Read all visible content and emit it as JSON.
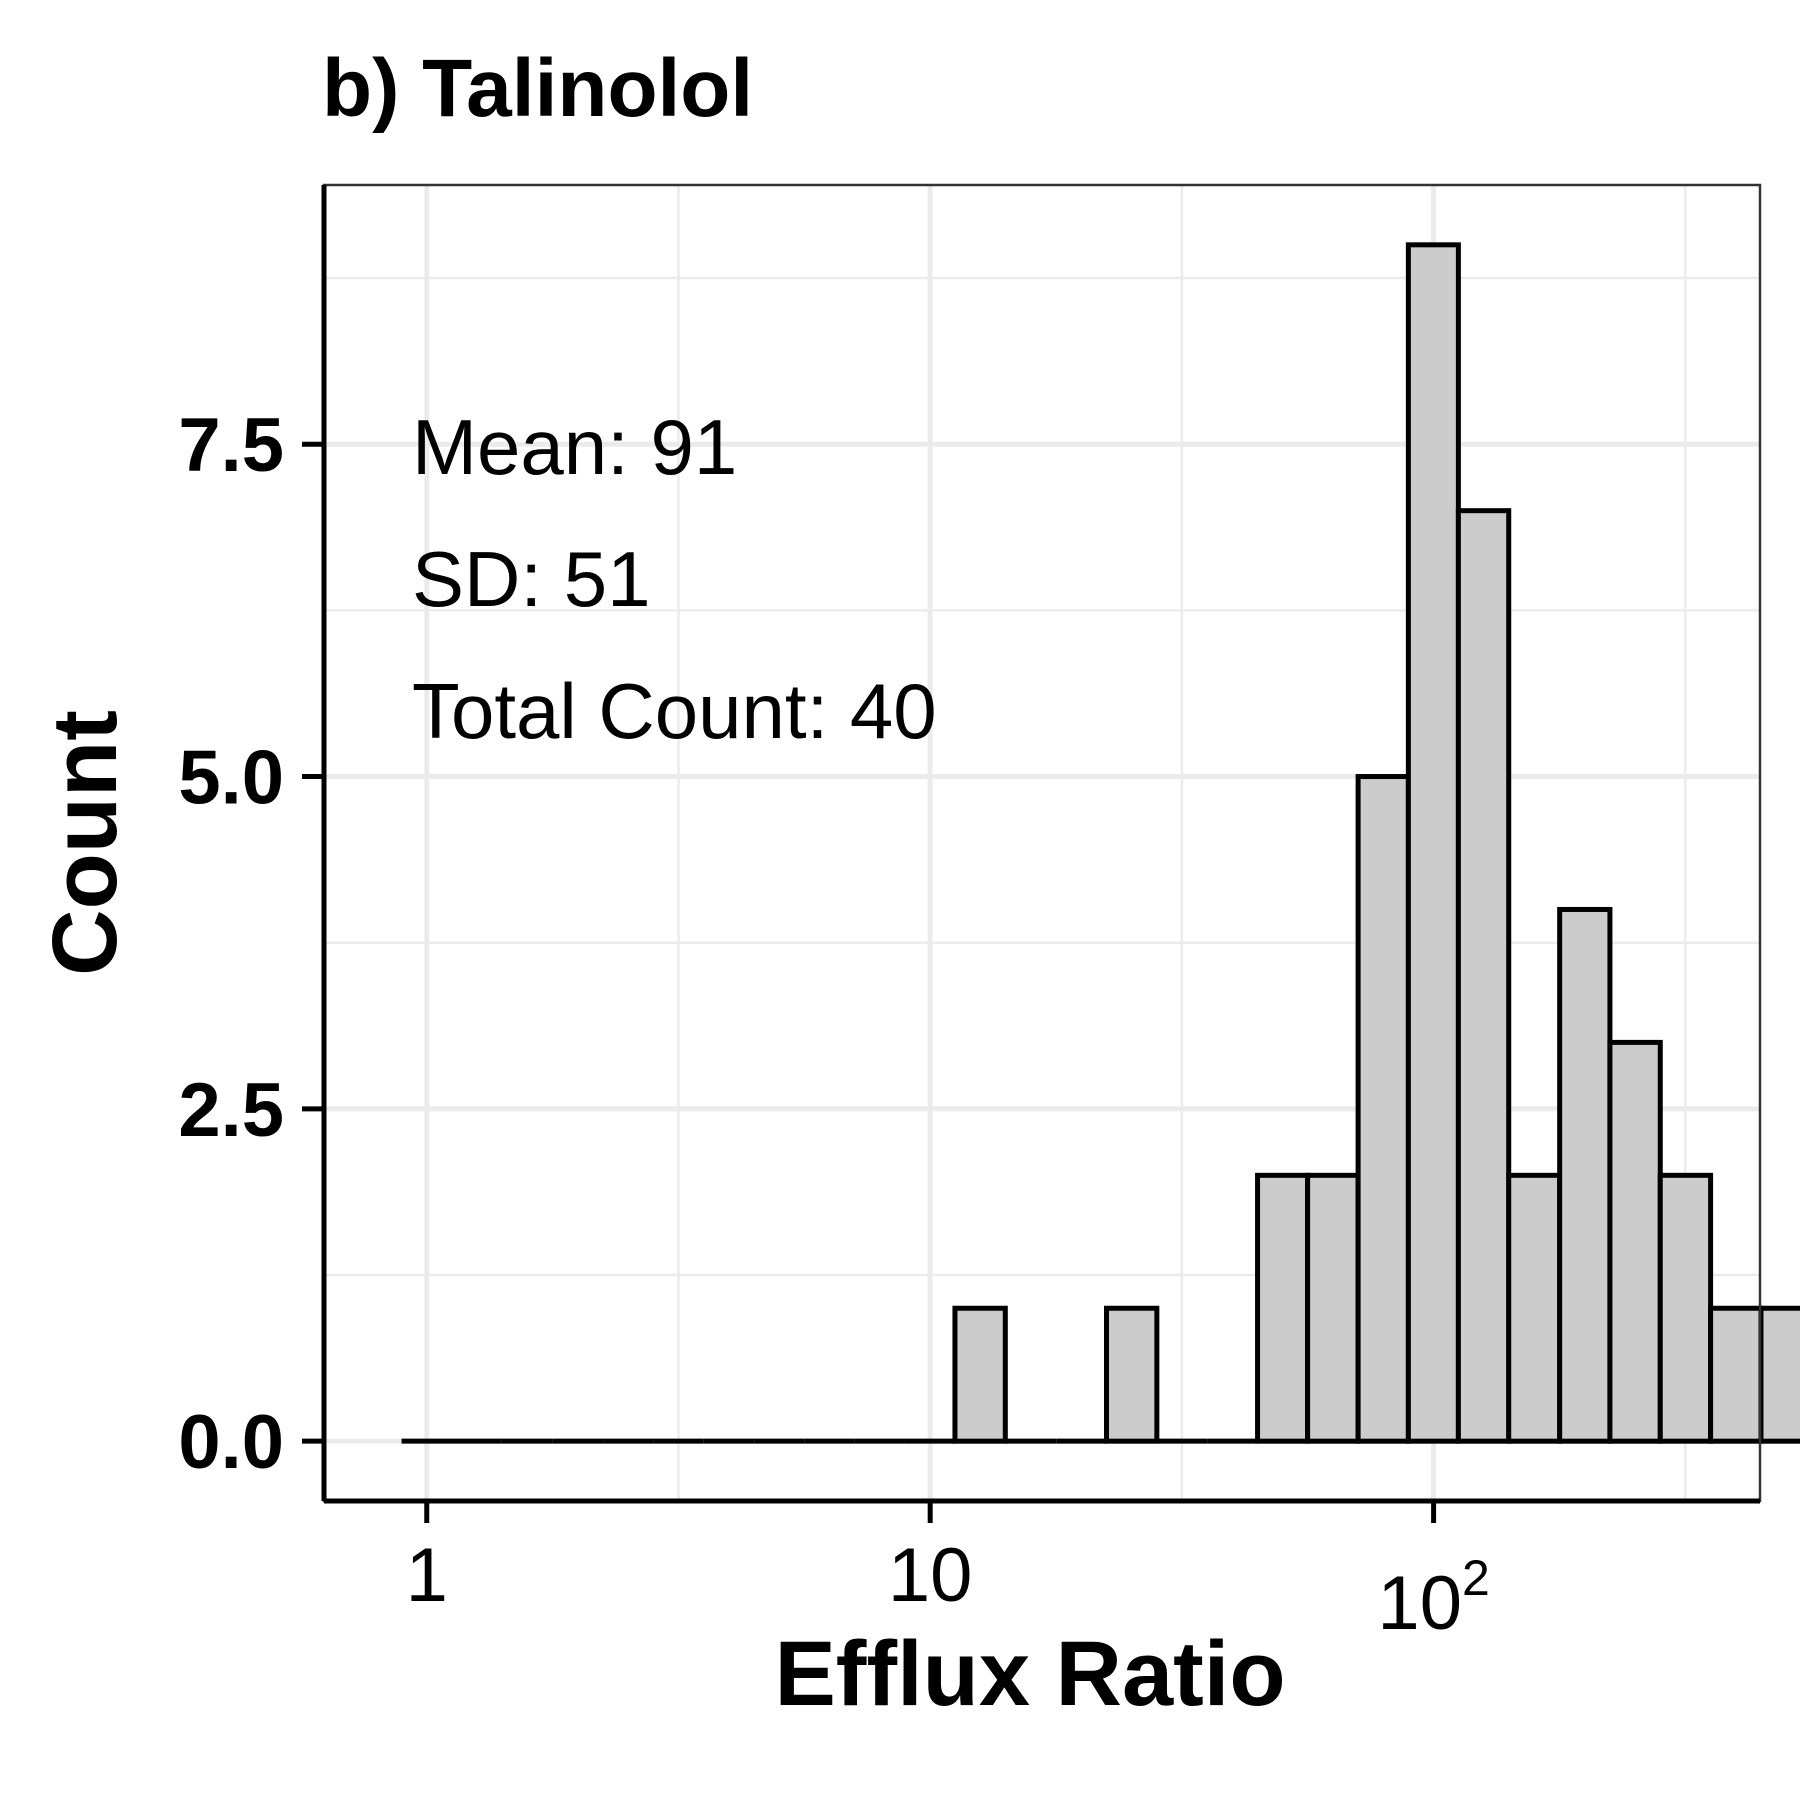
{
  "chart_data": {
    "type": "bar",
    "title": "b) Talinolol",
    "xlabel": "Efflux Ratio",
    "ylabel": "Count",
    "x_scale": "log10",
    "xlim": [
      0.625,
      445
    ],
    "ylim": [
      -0.45,
      9.45
    ],
    "x_ticks": [
      {
        "value": 1,
        "label": "1",
        "sup": ""
      },
      {
        "value": 10,
        "label": "10",
        "sup": ""
      },
      {
        "value": 100,
        "label": "10",
        "sup": "2"
      }
    ],
    "y_ticks": [
      {
        "value": 0,
        "label": "0.0"
      },
      {
        "value": 2.5,
        "label": "2.5"
      },
      {
        "value": 5,
        "label": "5.0"
      },
      {
        "value": 7.5,
        "label": "7.5"
      }
    ],
    "grid": true,
    "bar_fill": "#cccccc",
    "bar_edge": "#000000",
    "grid_color": "#ebebeb",
    "bins": [
      {
        "x0": 0.891,
        "x1": 1.12,
        "count": 0
      },
      {
        "x0": 1.12,
        "x1": 1.41,
        "count": 0
      },
      {
        "x0": 1.41,
        "x1": 1.78,
        "count": 0
      },
      {
        "x0": 1.78,
        "x1": 2.24,
        "count": 0
      },
      {
        "x0": 2.24,
        "x1": 2.82,
        "count": 0
      },
      {
        "x0": 2.82,
        "x1": 3.55,
        "count": 0
      },
      {
        "x0": 3.55,
        "x1": 4.47,
        "count": 0
      },
      {
        "x0": 4.47,
        "x1": 5.62,
        "count": 0
      },
      {
        "x0": 5.62,
        "x1": 7.08,
        "count": 0
      },
      {
        "x0": 7.08,
        "x1": 8.91,
        "count": 0
      },
      {
        "x0": 8.91,
        "x1": 11.2,
        "count": 0
      },
      {
        "x0": 11.2,
        "x1": 14.1,
        "count": 1
      },
      {
        "x0": 14.1,
        "x1": 17.8,
        "count": 0
      },
      {
        "x0": 17.8,
        "x1": 22.4,
        "count": 0
      },
      {
        "x0": 22.4,
        "x1": 28.2,
        "count": 1
      },
      {
        "x0": 28.2,
        "x1": 35.5,
        "count": 0
      },
      {
        "x0": 35.5,
        "x1": 44.7,
        "count": 0
      },
      {
        "x0": 44.7,
        "x1": 56.2,
        "count": 2
      },
      {
        "x0": 56.2,
        "x1": 70.8,
        "count": 2
      },
      {
        "x0": 70.8,
        "x1": 89.1,
        "count": 5
      },
      {
        "x0": 89.1,
        "x1": 112,
        "count": 9
      },
      {
        "x0": 112,
        "x1": 141,
        "count": 7
      },
      {
        "x0": 141,
        "x1": 178,
        "count": 2
      },
      {
        "x0": 178,
        "x1": 224,
        "count": 4
      },
      {
        "x0": 224,
        "x1": 282,
        "count": 3
      },
      {
        "x0": 282,
        "x1": 355,
        "count": 2
      },
      {
        "x0": 355,
        "x1": 447,
        "count": 1
      },
      {
        "x0": 447,
        "x1": 562,
        "count": 1
      }
    ],
    "annotations": [
      "Mean: 91",
      "SD: 51",
      "Total Count: 40"
    ]
  }
}
